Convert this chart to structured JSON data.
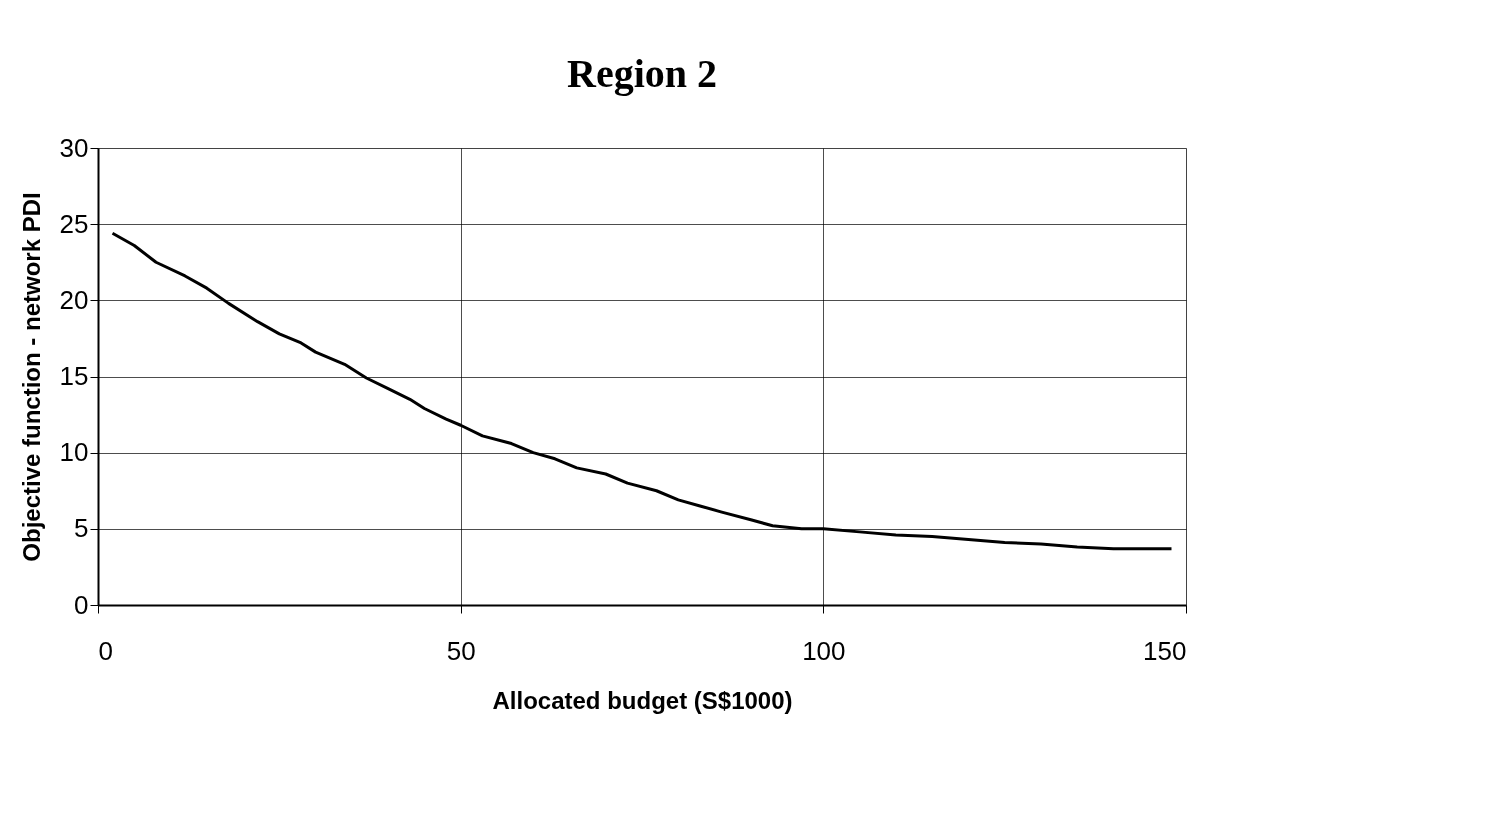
{
  "chart_data": {
    "type": "line",
    "title": "Region 2",
    "xlabel": "Allocated budget (S$1000)",
    "ylabel": "Objective function - network PDI",
    "x": [
      2,
      5,
      8,
      12,
      15,
      18,
      22,
      25,
      28,
      30,
      34,
      37,
      40,
      43,
      45,
      48,
      50,
      53,
      57,
      60,
      63,
      66,
      70,
      73,
      77,
      80,
      83,
      86,
      90,
      93,
      97,
      100,
      105,
      110,
      115,
      120,
      125,
      130,
      135,
      140,
      148
    ],
    "series": [
      {
        "color": "#000000",
        "values": [
          24.4,
          23.6,
          22.5,
          21.6,
          20.8,
          19.8,
          18.6,
          17.8,
          17.2,
          16.6,
          15.8,
          14.9,
          14.2,
          13.5,
          12.9,
          12.2,
          11.8,
          11.1,
          10.6,
          10.0,
          9.6,
          9.0,
          8.6,
          8.0,
          7.5,
          6.9,
          6.5,
          6.1,
          5.6,
          5.2,
          5.0,
          5.0,
          4.8,
          4.6,
          4.5,
          4.3,
          4.1,
          4.0,
          3.8,
          3.7,
          3.7
        ]
      }
    ],
    "xlim": [
      0,
      150
    ],
    "xticks": [
      0,
      50,
      100,
      150
    ],
    "ylim": [
      0,
      30
    ],
    "yticks": [
      0,
      5,
      10,
      15,
      20,
      25,
      30
    ],
    "grid": true,
    "marker": "none",
    "line_style": "solid",
    "legend": false
  }
}
